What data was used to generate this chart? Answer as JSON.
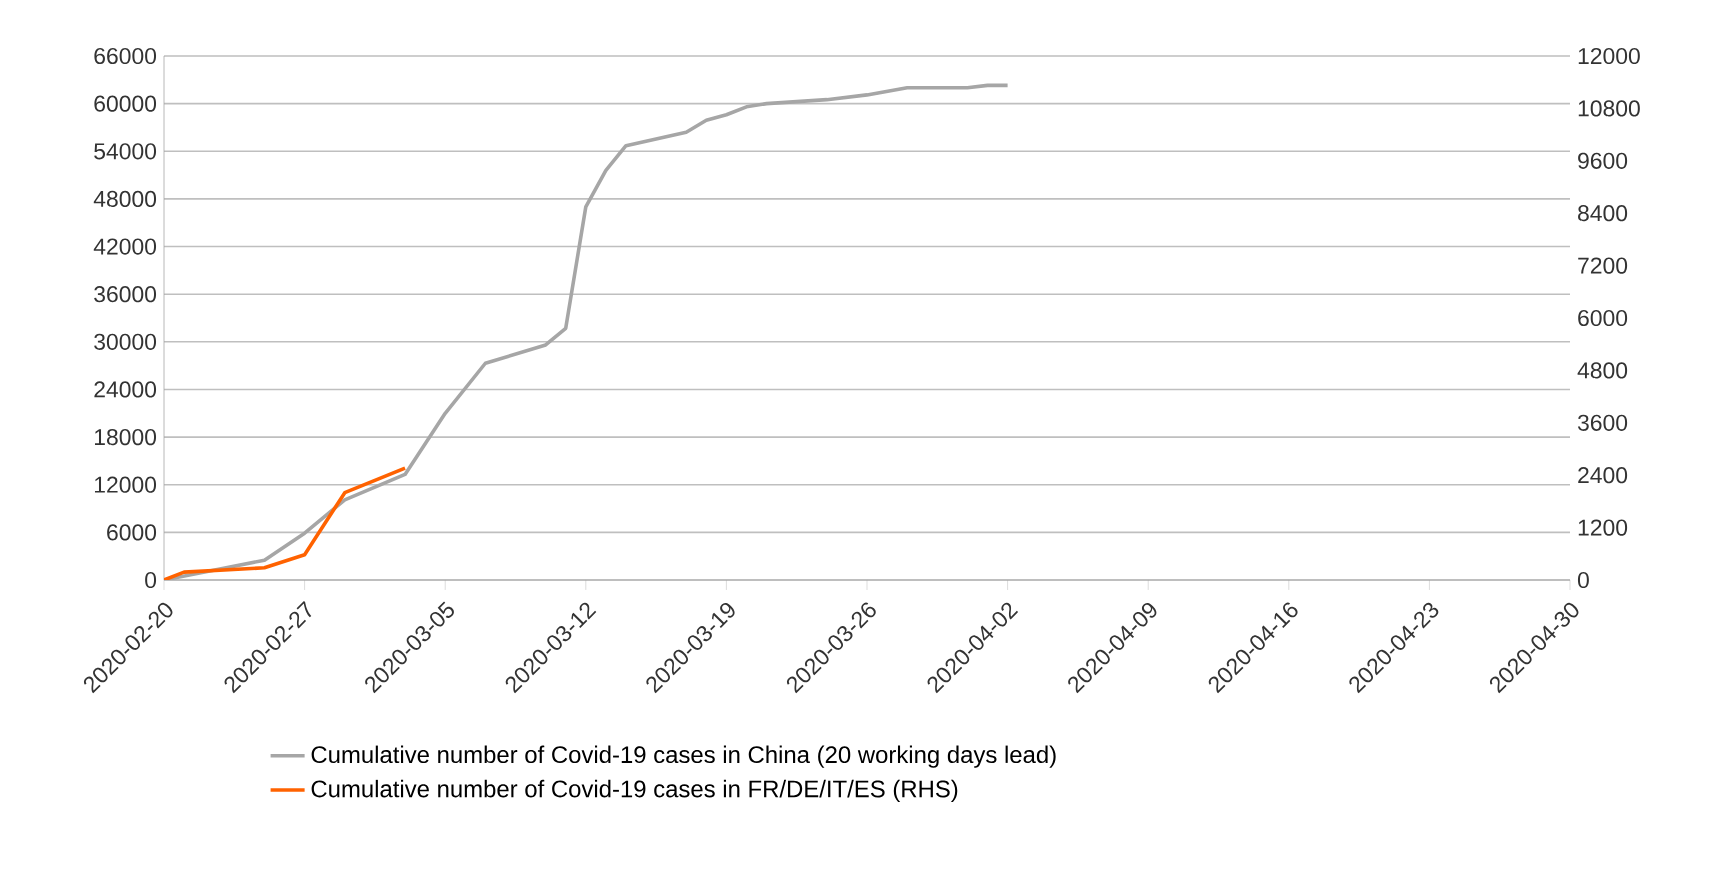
{
  "chart_data": {
    "type": "line",
    "series": [
      {
        "name": "Cumulative number of Covid-19 cases in China (20 working days lead)",
        "color": "#a6a6a6",
        "x": [
          "2020-02-20",
          "2020-02-25",
          "2020-02-27",
          "2020-02-29",
          "2020-03-03",
          "2020-03-05",
          "2020-03-07",
          "2020-03-10",
          "2020-03-11",
          "2020-03-12",
          "2020-03-13",
          "2020-03-14",
          "2020-03-17",
          "2020-03-18",
          "2020-03-19",
          "2020-03-20",
          "2020-03-21",
          "2020-03-24",
          "2020-03-26",
          "2020-03-28",
          "2020-03-31",
          "2020-04-01",
          "2020-04-02"
        ],
        "values": [
          0,
          2500,
          5900,
          10100,
          13300,
          21000,
          27300,
          29600,
          31700,
          47000,
          51600,
          54700,
          56400,
          57900,
          58600,
          59600,
          60000,
          60500,
          61100,
          62000,
          62000,
          62300,
          62300
        ]
      },
      {
        "name": "Cumulative number of Covid-19 cases in FR/DE/IT/ES (RHS)",
        "color": "#ff6200",
        "axis": "y2",
        "x": [
          "2020-02-20",
          "2020-02-21",
          "2020-02-25",
          "2020-02-27",
          "2020-02-29",
          "2020-03-03"
        ],
        "values": [
          0,
          180,
          280,
          580,
          2000,
          2560
        ]
      }
    ],
    "xlim": [
      "2020-02-20",
      "2020-04-30"
    ],
    "xticks": [
      "2020-02-20",
      "2020-02-27",
      "2020-03-05",
      "2020-03-12",
      "2020-03-19",
      "2020-03-26",
      "2020-04-02",
      "2020-04-09",
      "2020-04-16",
      "2020-04-23",
      "2020-04-30"
    ],
    "ylim": [
      0,
      66000
    ],
    "yticks": [
      0,
      6000,
      12000,
      18000,
      24000,
      30000,
      36000,
      42000,
      48000,
      54000,
      60000,
      66000
    ],
    "y2lim": [
      0,
      12000
    ],
    "y2ticks": [
      0,
      1200,
      2400,
      3600,
      4800,
      6000,
      7200,
      8400,
      9600,
      10800,
      12000
    ],
    "grid": "y",
    "legend": "bottom",
    "line_style": "solid",
    "marker": "none"
  }
}
